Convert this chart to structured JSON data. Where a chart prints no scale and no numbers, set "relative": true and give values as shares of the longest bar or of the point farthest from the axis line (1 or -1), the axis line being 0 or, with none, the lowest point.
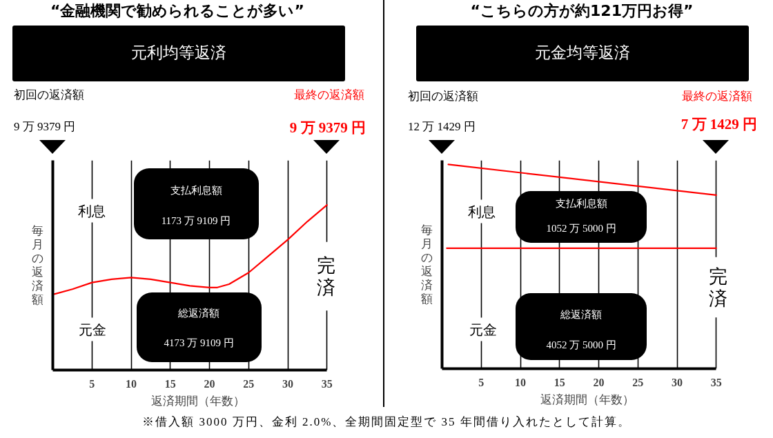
{
  "chart_data": [
    {
      "type": "line",
      "title": "“金融機関で勧められることが多い”",
      "subtitle": "元利均等返済",
      "xlabel": "返済期間（年数）",
      "ylabel": "毎月の返済額",
      "relative": true,
      "xlim": [
        0,
        35
      ],
      "xticks": [
        5,
        10,
        15,
        20,
        25,
        30,
        35
      ],
      "grid": "x",
      "series": [
        {
          "color": "#ff0000",
          "x": [
            0.2,
            2.5,
            5,
            7.5,
            10,
            12.5,
            15,
            17.5,
            20,
            21,
            22.5,
            25,
            27.5,
            30,
            32.5,
            35
          ],
          "values": [
            0.46,
            0.49,
            0.53,
            0.55,
            0.56,
            0.55,
            0.53,
            0.51,
            0.5,
            0.5,
            0.52,
            0.59,
            0.69,
            0.79,
            0.9,
            1
          ]
        }
      ],
      "annotations": [
        "初回の返済額",
        "9 万 9379 円",
        "最終の返済額",
        "9 万 9379 円",
        "利息",
        "元金",
        "完済",
        "支払利息額",
        "1173 万 9109 円",
        "総返済額",
        "4173 万 9109 円"
      ]
    },
    {
      "type": "line",
      "title": "“こちらの方が約121万円お得”",
      "subtitle": "元金均等返済",
      "xlabel": "返済期間（年数）",
      "ylabel": "毎月の返済額",
      "relative": true,
      "xlim": [
        0,
        35
      ],
      "xticks": [
        5,
        10,
        15,
        20,
        25,
        30,
        35
      ],
      "grid": "x",
      "series": [
        {
          "color": "#ff0000",
          "x": [
            0.8,
            35
          ],
          "values": [
            1,
            0.85
          ]
        },
        {
          "color": "#ff0000",
          "x": [
            0.6,
            35
          ],
          "values": [
            0.59,
            0.59
          ]
        }
      ],
      "annotations": [
        "初回の返済額",
        "12 万 1429 円",
        "最終の返済額",
        "7 万 1429 円",
        "利息",
        "元金",
        "完済",
        "支払利息額",
        "1052 万 5000 円",
        "総返済額",
        "4052 万 5000 円",
        "※借入額 3000 万円、金利 2.0%、全期間固定型で 35 年間借り入れたとして計算。"
      ]
    }
  ]
}
